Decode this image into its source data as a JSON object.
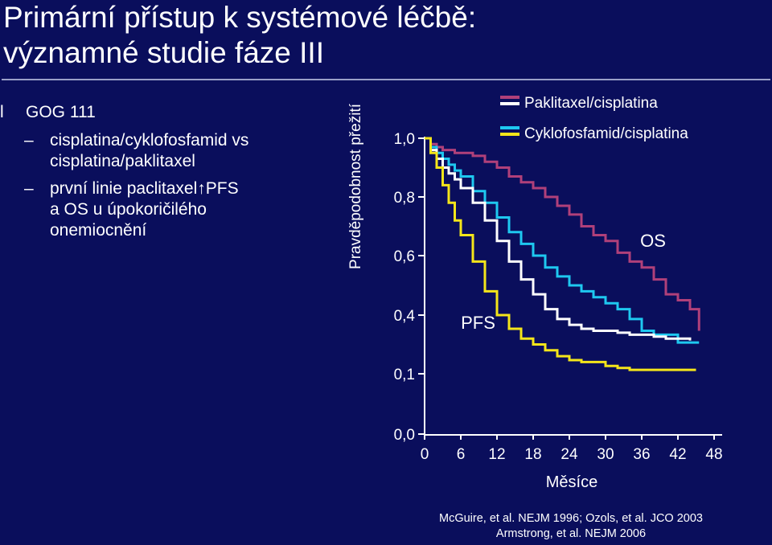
{
  "title": {
    "line1": "Primární přístup k systémové léčbě:",
    "line2": "významné studie fáze III"
  },
  "bullets": {
    "marker": "l",
    "heading": "GOG 111",
    "dash": "–",
    "items": [
      {
        "lines": [
          "cisplatina/cyklofosfamid vs",
          "cisplatina/paklitaxel"
        ]
      },
      {
        "lines": [
          "první linie paclitaxel",
          "a OS u úpokoričilého",
          "onemiocnění"
        ],
        "arrow": "↑",
        "arrow_text": "PFS"
      }
    ]
  },
  "references": {
    "line1": "McGuire, et al. NEJM 1996; Ozols, et al. JCO 2003",
    "line2": "Armstrong, et al. NEJM 2006"
  },
  "colors": {
    "background": "#0a0e5c",
    "purple": "#b0407a",
    "cyan": "#1ec8f0",
    "white": "#ffffff",
    "yellow": "#f4e51a"
  },
  "chart_data": {
    "type": "line",
    "title": "",
    "xlabel": "Měsíce",
    "ylabel": "Pravděpodobnost přežití",
    "xticks": [
      0,
      6,
      12,
      18,
      24,
      30,
      36,
      42,
      48
    ],
    "yticks": [
      "0,0",
      "0,1",
      "0,4",
      "0,6",
      "0,8",
      "1,0"
    ],
    "xlim": [
      0,
      48
    ],
    "ylim": [
      0,
      1.0
    ],
    "legend": [
      {
        "label": "Paklitaxel/cisplatina",
        "swatch_colors": [
          "#b0407a",
          "#ffffff"
        ]
      },
      {
        "label": "Cyklofosfamid/cisplatina",
        "swatch_colors": [
          "#1ec8f0",
          "#f4e51a"
        ]
      }
    ],
    "annotations": [
      {
        "text": "OS",
        "x": 36,
        "y": 0.63
      },
      {
        "text": "PFS",
        "x": 7,
        "y": 0.33
      }
    ],
    "series": [
      {
        "color": "#b0407a",
        "endpoint": "OS",
        "x": [
          0,
          1,
          2,
          3,
          4,
          5,
          6,
          8,
          10,
          12,
          14,
          16,
          18,
          20,
          22,
          24,
          26,
          28,
          30,
          32,
          34,
          36,
          38,
          40,
          42,
          44,
          45.5
        ],
        "y": [
          1.0,
          0.98,
          0.97,
          0.96,
          0.96,
          0.95,
          0.95,
          0.94,
          0.92,
          0.9,
          0.87,
          0.85,
          0.83,
          0.8,
          0.77,
          0.74,
          0.7,
          0.67,
          0.65,
          0.61,
          0.58,
          0.56,
          0.52,
          0.47,
          0.45,
          0.42,
          0.32
        ]
      },
      {
        "color": "#1ec8f0",
        "endpoint": "OS",
        "x": [
          0,
          1,
          2,
          3,
          4,
          5,
          6,
          8,
          10,
          12,
          14,
          16,
          18,
          20,
          22,
          24,
          26,
          28,
          30,
          32,
          34,
          36,
          38,
          40,
          42,
          44,
          45.5
        ],
        "y": [
          1.0,
          0.97,
          0.95,
          0.93,
          0.91,
          0.89,
          0.87,
          0.82,
          0.78,
          0.73,
          0.68,
          0.64,
          0.6,
          0.56,
          0.53,
          0.5,
          0.48,
          0.46,
          0.44,
          0.42,
          0.38,
          0.32,
          0.3,
          0.3,
          0.26,
          0.26,
          0.26
        ]
      },
      {
        "color": "#ffffff",
        "endpoint": "PFS",
        "x": [
          0,
          1,
          2,
          3,
          4,
          5,
          6,
          8,
          10,
          12,
          14,
          16,
          18,
          20,
          22,
          24,
          26,
          28,
          30,
          32,
          34,
          36,
          38,
          40,
          42,
          44
        ],
        "y": [
          1.0,
          0.96,
          0.93,
          0.9,
          0.88,
          0.86,
          0.83,
          0.78,
          0.72,
          0.65,
          0.58,
          0.52,
          0.47,
          0.42,
          0.38,
          0.35,
          0.33,
          0.32,
          0.32,
          0.31,
          0.3,
          0.3,
          0.29,
          0.28,
          0.28,
          0.27
        ]
      },
      {
        "color": "#f4e51a",
        "endpoint": "PFS",
        "x": [
          0,
          1,
          2,
          3,
          4,
          5,
          6,
          8,
          10,
          12,
          14,
          16,
          18,
          20,
          22,
          24,
          26,
          28,
          30,
          32,
          34,
          36,
          38,
          40,
          42,
          44,
          45
        ],
        "y": [
          1.0,
          0.95,
          0.9,
          0.84,
          0.78,
          0.72,
          0.67,
          0.58,
          0.48,
          0.4,
          0.33,
          0.28,
          0.25,
          0.22,
          0.19,
          0.17,
          0.16,
          0.16,
          0.14,
          0.13,
          0.12,
          0.12,
          0.12,
          0.12,
          0.12,
          0.12,
          0.12
        ]
      }
    ]
  }
}
